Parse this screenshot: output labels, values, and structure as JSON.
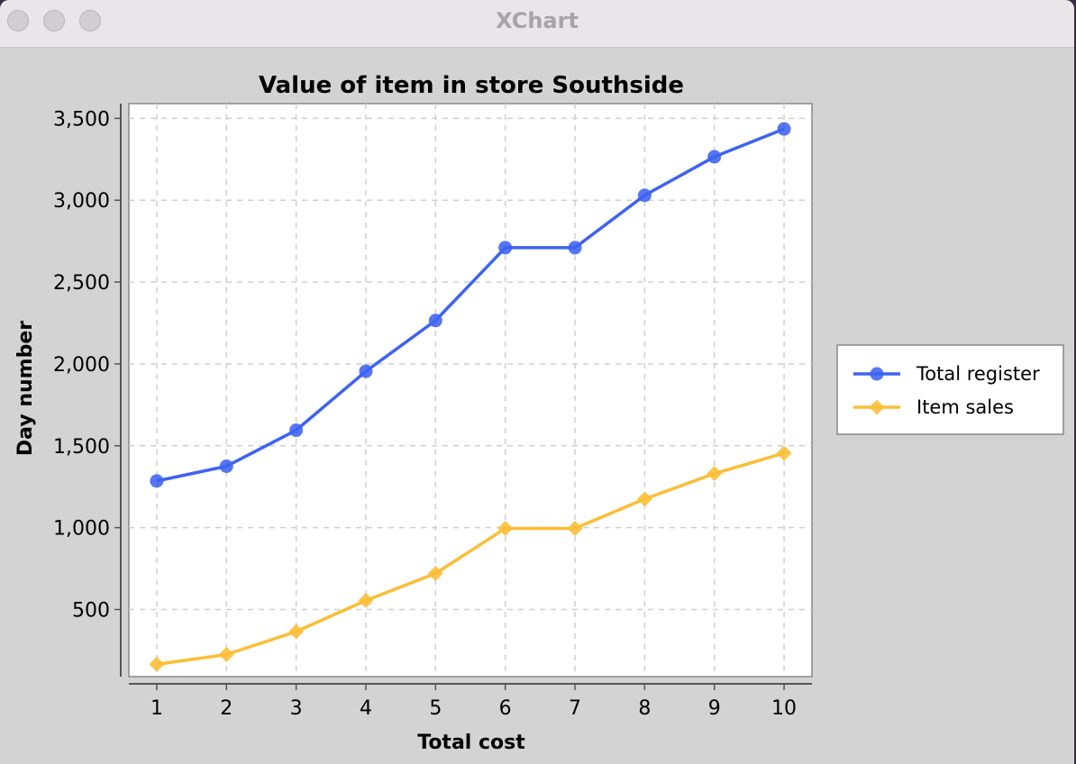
{
  "window": {
    "title": "XChart"
  },
  "chart_data": {
    "type": "line",
    "title": "Value of item in store Southside",
    "xlabel": "Total cost",
    "ylabel": "Day number",
    "x": [
      1,
      2,
      3,
      4,
      5,
      6,
      7,
      8,
      9,
      10
    ],
    "xlim": [
      0.6,
      10.4
    ],
    "ylim": [
      90,
      3590
    ],
    "yticks": [
      500,
      1000,
      1500,
      2000,
      2500,
      3000,
      3500
    ],
    "ytick_labels": [
      "500",
      "1,000",
      "1,500",
      "2,000",
      "2,500",
      "3,000",
      "3,500"
    ],
    "grid": true,
    "legend_position": "right",
    "series": [
      {
        "name": "Total register",
        "marker": "circle",
        "color": "#3e63f0",
        "values": [
          1285,
          1375,
          1595,
          1955,
          2265,
          2710,
          2710,
          3030,
          3265,
          3435
        ]
      },
      {
        "name": "Item sales",
        "marker": "diamond",
        "color": "#fbbe35",
        "values": [
          165,
          225,
          365,
          555,
          720,
          995,
          995,
          1175,
          1330,
          1455
        ]
      }
    ]
  }
}
